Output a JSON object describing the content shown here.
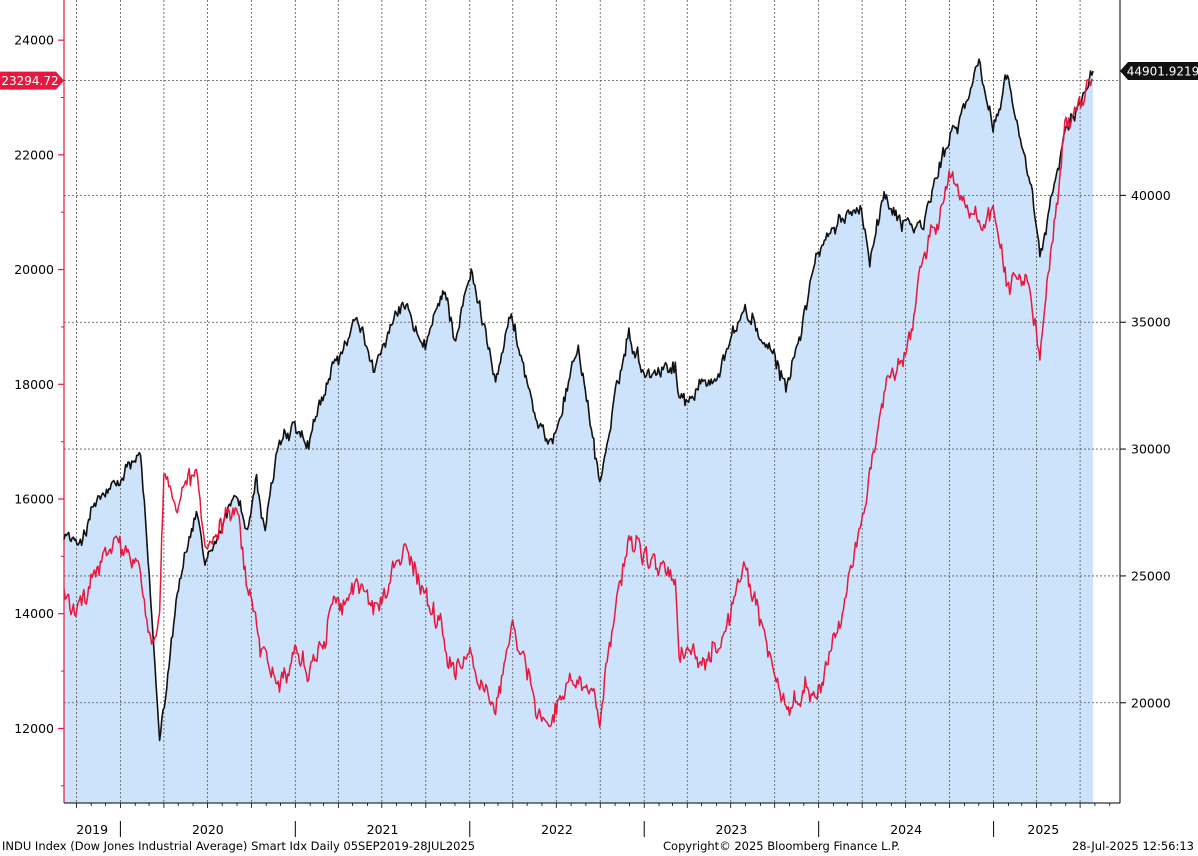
{
  "chart_data": {
    "type": "line",
    "footer": {
      "description": "INDU Index (Dow Jones Industrial Average) Smart Idx  Daily 05SEP2019-28JUL2025",
      "copyright": "Copyright© 2025 Bloomberg Finance L.P.",
      "timestamp": "28-Jul-2025 12:56:13"
    },
    "x_axis": {
      "range": [
        "2019-09-05",
        "2025-07-28"
      ],
      "year_labels": [
        "2019",
        "2020",
        "2021",
        "2022",
        "2023",
        "2024",
        "2025"
      ]
    },
    "left_axis": {
      "range": [
        10700,
        24700
      ],
      "ticks": [
        12000,
        14000,
        16000,
        18000,
        20000,
        22000,
        24000
      ],
      "tick_labels": [
        "12000",
        "14000",
        "16000",
        "18000",
        "20000",
        "22000",
        "24000"
      ],
      "color": "#e8173d"
    },
    "right_axis": {
      "range": [
        16050,
        47700
      ],
      "ticks": [
        20000,
        25000,
        30000,
        35000,
        40000
      ],
      "tick_labels": [
        "20000",
        "25000",
        "30000",
        "35000",
        "40000"
      ],
      "color": "#000000"
    },
    "last_values": {
      "left": "23294.72",
      "right": "44901.9219"
    },
    "grid": true,
    "series": [
      {
        "axis": "right",
        "style": "line-with-area",
        "color": "#111111",
        "fill": "#cce3fb",
        "points": [
          [
            "2019-09-05",
            26800
          ],
          [
            "2019-10-02",
            26100
          ],
          [
            "2019-11-15",
            28000
          ],
          [
            "2019-12-31",
            28500
          ],
          [
            "2020-01-17",
            29300
          ],
          [
            "2020-02-12",
            29550
          ],
          [
            "2020-02-28",
            25400
          ],
          [
            "2020-03-23",
            18600
          ],
          [
            "2020-04-29",
            24600
          ],
          [
            "2020-06-08",
            27570
          ],
          [
            "2020-06-26",
            25000
          ],
          [
            "2020-08-31",
            28400
          ],
          [
            "2020-09-23",
            26800
          ],
          [
            "2020-10-12",
            28800
          ],
          [
            "2020-10-30",
            26500
          ],
          [
            "2020-11-24",
            30000
          ],
          [
            "2020-12-31",
            30600
          ],
          [
            "2021-01-29",
            29980
          ],
          [
            "2021-03-17",
            33000
          ],
          [
            "2021-05-07",
            34800
          ],
          [
            "2021-06-18",
            33300
          ],
          [
            "2021-08-16",
            35600
          ],
          [
            "2021-09-30",
            33800
          ],
          [
            "2021-11-08",
            36400
          ],
          [
            "2021-11-30",
            34500
          ],
          [
            "2022-01-04",
            36800
          ],
          [
            "2022-02-24",
            33100
          ],
          [
            "2022-03-29",
            35300
          ],
          [
            "2022-05-19",
            31250
          ],
          [
            "2022-06-16",
            29900
          ],
          [
            "2022-08-16",
            34150
          ],
          [
            "2022-09-30",
            28700
          ],
          [
            "2022-11-30",
            34600
          ],
          [
            "2022-12-31",
            33150
          ],
          [
            "2023-03-07",
            33400
          ],
          [
            "2023-03-15",
            31900
          ],
          [
            "2023-05-31",
            32900
          ],
          [
            "2023-07-31",
            35560
          ],
          [
            "2023-10-27",
            32400
          ],
          [
            "2023-12-29",
            37700
          ],
          [
            "2024-03-28",
            39800
          ],
          [
            "2024-04-17",
            37750
          ],
          [
            "2024-05-17",
            40000
          ],
          [
            "2024-06-28",
            39100
          ],
          [
            "2024-08-05",
            38700
          ],
          [
            "2024-09-30",
            42300
          ],
          [
            "2024-12-04",
            45000
          ],
          [
            "2024-12-31",
            42550
          ],
          [
            "2025-01-30",
            44900
          ],
          [
            "2025-03-13",
            40800
          ],
          [
            "2025-04-08",
            37600
          ],
          [
            "2025-05-30",
            42300
          ],
          [
            "2025-07-28",
            44901.92
          ]
        ]
      },
      {
        "axis": "left",
        "style": "line",
        "color": "#e8173d",
        "points": [
          [
            "2019-09-05",
            14400
          ],
          [
            "2019-10-02",
            13900
          ],
          [
            "2019-11-15",
            14800
          ],
          [
            "2019-12-31",
            15200
          ],
          [
            "2020-01-17",
            14900
          ],
          [
            "2020-02-12",
            14700
          ],
          [
            "2020-02-28",
            13400
          ],
          [
            "2020-03-23",
            14000
          ],
          [
            "2020-04-01",
            16500
          ],
          [
            "2020-04-29",
            15800
          ],
          [
            "2020-06-08",
            16300
          ],
          [
            "2020-06-26",
            15000
          ],
          [
            "2020-08-31",
            15800
          ],
          [
            "2020-09-23",
            14300
          ],
          [
            "2020-10-12",
            14000
          ],
          [
            "2020-10-30",
            13200
          ],
          [
            "2020-11-24",
            12800
          ],
          [
            "2020-12-31",
            13400
          ],
          [
            "2021-01-29",
            13000
          ],
          [
            "2021-03-17",
            14100
          ],
          [
            "2021-05-07",
            14500
          ],
          [
            "2021-06-18",
            14100
          ],
          [
            "2021-08-16",
            15000
          ],
          [
            "2021-09-30",
            14200
          ],
          [
            "2021-11-08",
            13500
          ],
          [
            "2021-11-30",
            12900
          ],
          [
            "2022-01-04",
            13200
          ],
          [
            "2022-02-24",
            12300
          ],
          [
            "2022-03-29",
            13800
          ],
          [
            "2022-05-19",
            12500
          ],
          [
            "2022-06-16",
            12100
          ],
          [
            "2022-08-16",
            13100
          ],
          [
            "2022-09-30",
            12300
          ],
          [
            "2022-11-30",
            15500
          ],
          [
            "2022-12-31",
            15000
          ],
          [
            "2023-03-07",
            14500
          ],
          [
            "2023-03-15",
            13200
          ],
          [
            "2023-05-31",
            13500
          ],
          [
            "2023-07-31",
            14700
          ],
          [
            "2023-10-27",
            12400
          ],
          [
            "2023-12-29",
            12600
          ],
          [
            "2024-03-28",
            15400
          ],
          [
            "2024-04-17",
            16300
          ],
          [
            "2024-05-17",
            17600
          ],
          [
            "2024-06-28",
            18600
          ],
          [
            "2024-08-05",
            20200
          ],
          [
            "2024-09-30",
            21600
          ],
          [
            "2024-12-04",
            20600
          ],
          [
            "2024-12-31",
            21200
          ],
          [
            "2025-01-30",
            19800
          ],
          [
            "2025-03-13",
            20000
          ],
          [
            "2025-04-08",
            18600
          ],
          [
            "2025-05-30",
            22400
          ],
          [
            "2025-07-28",
            23294.72
          ]
        ]
      }
    ]
  }
}
